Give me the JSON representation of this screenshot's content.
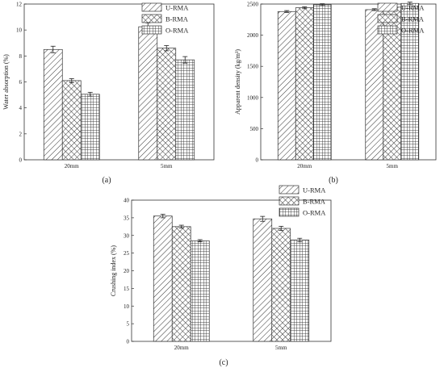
{
  "patterns": {
    "U-RMA": "diagonal-hatch",
    "B-RMA": "cross-diagonal-hatch",
    "O-RMA": "grid-hatch"
  },
  "chart_data": [
    {
      "panel_label": "(a)",
      "type": "bar",
      "categories": [
        "20mm",
        "5mm"
      ],
      "ylabel": "Water absorption (%)",
      "ylim": [
        0,
        12
      ],
      "yticks": [
        0,
        2,
        4,
        6,
        8,
        10,
        12
      ],
      "legend_position": "top-right",
      "series": [
        {
          "name": "U-RMA",
          "values": [
            8.5,
            10.25
          ],
          "errors": [
            0.25,
            0.3
          ]
        },
        {
          "name": "B-RMA",
          "values": [
            6.1,
            8.6
          ],
          "errors": [
            0.15,
            0.2
          ]
        },
        {
          "name": "O-RMA",
          "values": [
            5.05,
            7.7
          ],
          "errors": [
            0.15,
            0.25
          ]
        }
      ]
    },
    {
      "panel_label": "(b)",
      "type": "bar",
      "categories": [
        "20mm",
        "5mm"
      ],
      "ylabel": "Apparent density (kg/m³)",
      "ylim": [
        0,
        2500
      ],
      "yticks": [
        0,
        500,
        1000,
        1500,
        2000,
        2500
      ],
      "legend_position": "top-right",
      "series": [
        {
          "name": "U-RMA",
          "values": [
            2380,
            2410
          ],
          "errors": [
            15,
            15
          ]
        },
        {
          "name": "B-RMA",
          "values": [
            2440,
            2450
          ],
          "errors": [
            15,
            15
          ]
        },
        {
          "name": "O-RMA",
          "values": [
            2490,
            2510
          ],
          "errors": [
            15,
            20
          ]
        }
      ]
    },
    {
      "panel_label": "(c)",
      "type": "bar",
      "categories": [
        "20mm",
        "5mm"
      ],
      "ylabel": "Crushing index (%)",
      "ylim": [
        0,
        40
      ],
      "yticks": [
        0,
        5,
        10,
        15,
        20,
        25,
        30,
        35,
        40
      ],
      "legend_position": "top-right",
      "series": [
        {
          "name": "U-RMA",
          "values": [
            35.5,
            34.7
          ],
          "errors": [
            0.5,
            0.7
          ]
        },
        {
          "name": "B-RMA",
          "values": [
            32.5,
            32.0
          ],
          "errors": [
            0.4,
            0.6
          ]
        },
        {
          "name": "O-RMA",
          "values": [
            28.5,
            28.7
          ],
          "errors": [
            0.3,
            0.5
          ]
        }
      ]
    }
  ]
}
